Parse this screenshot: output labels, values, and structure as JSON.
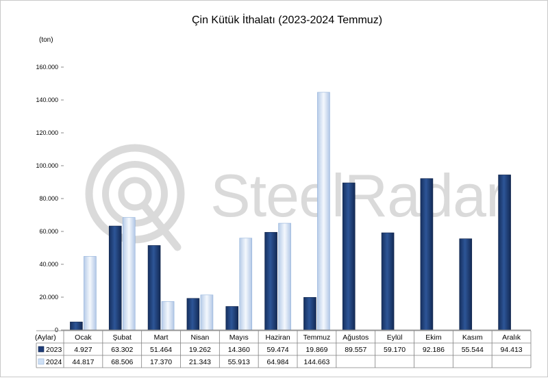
{
  "chart_data": {
    "type": "bar",
    "title": "Çin Kütük İthalatı (2023-2024 Temmuz)",
    "unit_label": "(ton)",
    "xlabel": "(Aylar)",
    "ylim": [
      0,
      160000
    ],
    "yticks": [
      0,
      20000,
      40000,
      60000,
      80000,
      100000,
      120000,
      140000,
      160000
    ],
    "ytick_labels": [
      "0",
      "20.000",
      "40.000",
      "60.000",
      "80.000",
      "100.000",
      "120.000",
      "140.000",
      "160.000"
    ],
    "categories": [
      "Ocak",
      "Şubat",
      "Mart",
      "Nisan",
      "Mayıs",
      "Haziran",
      "Temmuz",
      "Ağustos",
      "Eylül",
      "Ekim",
      "Kasım",
      "Aralık"
    ],
    "series": [
      {
        "name": "2023",
        "color": "#1f3d78",
        "values": [
          4927,
          63302,
          51464,
          19262,
          14360,
          59474,
          19869,
          89557,
          59170,
          92186,
          55544,
          94413
        ],
        "labels": [
          "4.927",
          "63.302",
          "51.464",
          "19.262",
          "14.360",
          "59.474",
          "19.869",
          "89.557",
          "59.170",
          "92.186",
          "55.544",
          "94.413"
        ]
      },
      {
        "name": "2024",
        "color": "#cfe0f5",
        "values": [
          44817,
          68506,
          17370,
          21343,
          55913,
          64984,
          144663,
          null,
          null,
          null,
          null,
          null
        ],
        "labels": [
          "44.817",
          "68.506",
          "17.370",
          "21.343",
          "55.913",
          "64.984",
          "144.663",
          "",
          "",
          "",
          "",
          ""
        ]
      }
    ],
    "grid": false,
    "legend": "data-table-left",
    "watermark": "SteelRadar"
  }
}
